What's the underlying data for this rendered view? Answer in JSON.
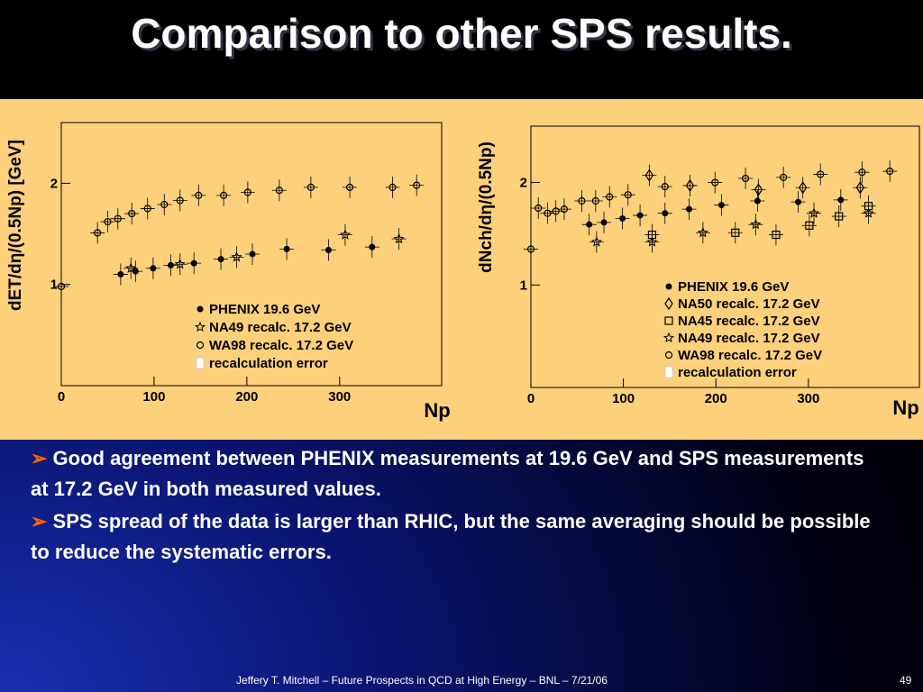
{
  "title": "Comparison to other SPS results.",
  "chart_data": [
    {
      "type": "scatter",
      "x_label": "Np",
      "y_label": "dET/dη/(0.5Np) [GeV]",
      "xlim": [
        0,
        410
      ],
      "ylim": [
        0,
        2.6
      ],
      "xticks": [
        0,
        100,
        200,
        300
      ],
      "yticks": [
        1,
        2
      ],
      "error_note": "recalculation error",
      "series": [
        {
          "name": "PHENIX 19.6 GeV",
          "color": "#000000",
          "marker": "filled-circle",
          "x": [
            64,
            80,
            99,
            118,
            143,
            172,
            206,
            243,
            288,
            335
          ],
          "values": [
            1.1,
            1.13,
            1.16,
            1.19,
            1.21,
            1.25,
            1.3,
            1.35,
            1.34,
            1.37
          ]
        },
        {
          "name": "NA49 recalc. 17.2 GeV",
          "color": "#000000",
          "marker": "star",
          "x": [
            75,
            128,
            189,
            306,
            364
          ],
          "values": [
            1.16,
            1.2,
            1.27,
            1.49,
            1.45
          ]
        },
        {
          "name": "WA98 recalc. 17.2 GeV",
          "color": "#000000",
          "marker": "open-circle",
          "x": [
            0,
            39,
            50,
            61,
            76,
            93,
            111,
            128,
            148,
            175,
            201,
            235,
            269,
            311,
            357,
            383
          ],
          "values": [
            0.98,
            1.51,
            1.62,
            1.65,
            1.7,
            1.75,
            1.79,
            1.83,
            1.88,
            1.88,
            1.91,
            1.93,
            1.96,
            1.96,
            1.96,
            1.98
          ]
        }
      ]
    },
    {
      "type": "scatter",
      "x_label": "Np",
      "y_label": "dNch/dη/(0.5Np)",
      "xlim": [
        0,
        420
      ],
      "ylim": [
        0,
        2.55
      ],
      "xticks": [
        0,
        100,
        200,
        300
      ],
      "yticks": [
        1,
        2
      ],
      "error_note": "recalculation error",
      "series": [
        {
          "name": "PHENIX 19.6 GeV",
          "color": "#000000",
          "marker": "filled-circle",
          "x": [
            63,
            79,
            99,
            118,
            145,
            171,
            206,
            245,
            289,
            335
          ],
          "values": [
            1.59,
            1.61,
            1.65,
            1.68,
            1.7,
            1.74,
            1.78,
            1.82,
            1.81,
            1.83
          ]
        },
        {
          "name": "NA50 recalc. 17.2 GeV",
          "color": "#000000",
          "marker": "diamond",
          "x": [
            128,
            172,
            246,
            294,
            356
          ],
          "values": [
            2.07,
            1.97,
            1.93,
            1.95,
            1.95
          ]
        },
        {
          "name": "NA45 recalc. 17.2 GeV",
          "color": "#000000",
          "marker": "square",
          "x": [
            131,
            221,
            265,
            301,
            333,
            365
          ],
          "values": [
            1.49,
            1.51,
            1.49,
            1.58,
            1.67,
            1.77
          ]
        },
        {
          "name": "NA49 recalc. 17.2 GeV",
          "color": "#000000",
          "marker": "star",
          "x": [
            71,
            131,
            186,
            243,
            306,
            365
          ],
          "values": [
            1.42,
            1.42,
            1.51,
            1.59,
            1.7,
            1.7
          ]
        },
        {
          "name": "WA98 recalc. 17.2 GeV",
          "color": "#000000",
          "marker": "open-circle",
          "x": [
            0,
            8,
            18,
            27,
            36,
            55,
            70,
            85,
            105,
            145,
            199,
            232,
            273,
            313,
            358,
            388
          ],
          "values": [
            1.35,
            1.75,
            1.7,
            1.72,
            1.74,
            1.82,
            1.82,
            1.86,
            1.88,
            1.96,
            2.0,
            2.04,
            2.05,
            2.08,
            2.1,
            2.11
          ]
        }
      ]
    }
  ],
  "bullets": [
    "Good agreement between PHENIX measurements at 19.6 GeV and SPS measurements at 17.2 GeV in both measured values.",
    "SPS spread of the data is larger than RHIC, but the same averaging should be possible to reduce the systematic errors."
  ],
  "footer": "Jeffery T. Mitchell – Future Prospects in QCD at High Energy – BNL – 7/21/06",
  "page_number": "49"
}
